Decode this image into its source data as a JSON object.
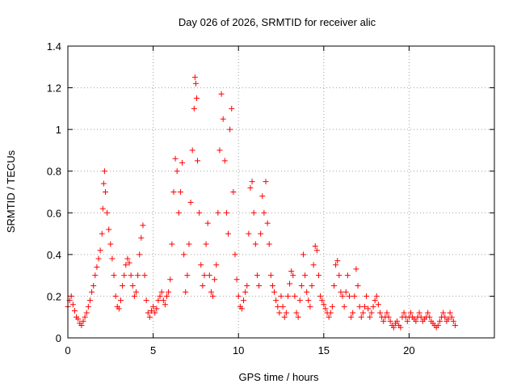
{
  "chart_data": {
    "type": "scatter",
    "title": "Day 026 of 2026, SRMTID for receiver alic",
    "xlabel": "GPS time / hours",
    "ylabel": "SRMTID / TECUs",
    "xlim": [
      0,
      25
    ],
    "ylim": [
      0,
      1.4
    ],
    "x_ticks": [
      0,
      5,
      10,
      15,
      20
    ],
    "y_ticks": [
      0,
      0.2,
      0.4,
      0.6,
      0.8,
      1,
      1.2,
      1.4
    ],
    "x_tick_labels": [
      "0",
      "5",
      "10",
      "15",
      "20"
    ],
    "y_tick_labels": [
      "0",
      "0.2",
      "0.4",
      "0.6",
      "0.8",
      "1",
      "1.2",
      "1.4"
    ],
    "grid": true,
    "marker": "plus",
    "color": "#ff0000",
    "series": [
      {
        "name": "SRMTID",
        "points": [
          [
            0.0,
            0.15
          ],
          [
            0.1,
            0.18
          ],
          [
            0.2,
            0.2
          ],
          [
            0.3,
            0.16
          ],
          [
            0.4,
            0.13
          ],
          [
            0.5,
            0.1
          ],
          [
            0.6,
            0.09
          ],
          [
            0.7,
            0.07
          ],
          [
            0.8,
            0.06
          ],
          [
            0.9,
            0.08
          ],
          [
            1.0,
            0.1
          ],
          [
            1.1,
            0.12
          ],
          [
            1.2,
            0.15
          ],
          [
            1.3,
            0.18
          ],
          [
            1.4,
            0.22
          ],
          [
            1.5,
            0.25
          ],
          [
            1.6,
            0.3
          ],
          [
            1.7,
            0.34
          ],
          [
            1.8,
            0.38
          ],
          [
            1.9,
            0.42
          ],
          [
            2.0,
            0.5
          ],
          [
            2.05,
            0.62
          ],
          [
            2.1,
            0.74
          ],
          [
            2.15,
            0.8
          ],
          [
            2.2,
            0.7
          ],
          [
            2.3,
            0.6
          ],
          [
            2.4,
            0.52
          ],
          [
            2.5,
            0.45
          ],
          [
            2.6,
            0.38
          ],
          [
            2.7,
            0.3
          ],
          [
            2.8,
            0.2
          ],
          [
            2.9,
            0.15
          ],
          [
            3.0,
            0.14
          ],
          [
            3.1,
            0.18
          ],
          [
            3.2,
            0.25
          ],
          [
            3.3,
            0.3
          ],
          [
            3.4,
            0.35
          ],
          [
            3.5,
            0.38
          ],
          [
            3.6,
            0.36
          ],
          [
            3.7,
            0.3
          ],
          [
            3.8,
            0.25
          ],
          [
            3.9,
            0.2
          ],
          [
            4.0,
            0.22
          ],
          [
            4.1,
            0.3
          ],
          [
            4.2,
            0.4
          ],
          [
            4.3,
            0.48
          ],
          [
            4.4,
            0.54
          ],
          [
            4.5,
            0.3
          ],
          [
            4.6,
            0.18
          ],
          [
            4.7,
            0.12
          ],
          [
            4.8,
            0.1
          ],
          [
            4.9,
            0.13
          ],
          [
            5.0,
            0.15
          ],
          [
            5.1,
            0.12
          ],
          [
            5.2,
            0.14
          ],
          [
            5.3,
            0.18
          ],
          [
            5.4,
            0.2
          ],
          [
            5.5,
            0.22
          ],
          [
            5.6,
            0.18
          ],
          [
            5.7,
            0.16
          ],
          [
            5.8,
            0.2
          ],
          [
            5.9,
            0.22
          ],
          [
            6.0,
            0.28
          ],
          [
            6.1,
            0.45
          ],
          [
            6.2,
            0.7
          ],
          [
            6.3,
            0.86
          ],
          [
            6.4,
            0.8
          ],
          [
            6.5,
            0.6
          ],
          [
            6.6,
            0.7
          ],
          [
            6.7,
            0.84
          ],
          [
            6.8,
            0.4
          ],
          [
            6.9,
            0.22
          ],
          [
            7.0,
            0.3
          ],
          [
            7.1,
            0.45
          ],
          [
            7.2,
            0.65
          ],
          [
            7.3,
            0.9
          ],
          [
            7.4,
            1.1
          ],
          [
            7.45,
            1.25
          ],
          [
            7.5,
            1.22
          ],
          [
            7.55,
            1.15
          ],
          [
            7.6,
            0.85
          ],
          [
            7.7,
            0.6
          ],
          [
            7.8,
            0.35
          ],
          [
            7.9,
            0.25
          ],
          [
            8.0,
            0.3
          ],
          [
            8.1,
            0.45
          ],
          [
            8.2,
            0.55
          ],
          [
            8.3,
            0.3
          ],
          [
            8.4,
            0.22
          ],
          [
            8.5,
            0.2
          ],
          [
            8.6,
            0.28
          ],
          [
            8.7,
            0.35
          ],
          [
            8.8,
            0.6
          ],
          [
            8.9,
            0.9
          ],
          [
            9.0,
            1.17
          ],
          [
            9.1,
            1.05
          ],
          [
            9.2,
            0.85
          ],
          [
            9.3,
            0.6
          ],
          [
            9.4,
            0.5
          ],
          [
            9.5,
            1.0
          ],
          [
            9.6,
            1.1
          ],
          [
            9.7,
            0.7
          ],
          [
            9.8,
            0.4
          ],
          [
            9.9,
            0.28
          ],
          [
            10.0,
            0.2
          ],
          [
            10.1,
            0.15
          ],
          [
            10.2,
            0.14
          ],
          [
            10.3,
            0.18
          ],
          [
            10.4,
            0.22
          ],
          [
            10.5,
            0.25
          ],
          [
            10.6,
            0.5
          ],
          [
            10.7,
            0.72
          ],
          [
            10.8,
            0.75
          ],
          [
            10.9,
            0.6
          ],
          [
            11.0,
            0.45
          ],
          [
            11.1,
            0.3
          ],
          [
            11.2,
            0.25
          ],
          [
            11.3,
            0.5
          ],
          [
            11.4,
            0.68
          ],
          [
            11.5,
            0.6
          ],
          [
            11.6,
            0.75
          ],
          [
            11.7,
            0.55
          ],
          [
            11.8,
            0.45
          ],
          [
            11.9,
            0.3
          ],
          [
            12.0,
            0.25
          ],
          [
            12.1,
            0.22
          ],
          [
            12.2,
            0.18
          ],
          [
            12.3,
            0.15
          ],
          [
            12.4,
            0.12
          ],
          [
            12.5,
            0.2
          ],
          [
            12.6,
            0.15
          ],
          [
            12.7,
            0.1
          ],
          [
            12.8,
            0.12
          ],
          [
            12.9,
            0.2
          ],
          [
            13.0,
            0.26
          ],
          [
            13.1,
            0.32
          ],
          [
            13.2,
            0.3
          ],
          [
            13.3,
            0.2
          ],
          [
            13.4,
            0.12
          ],
          [
            13.5,
            0.1
          ],
          [
            13.6,
            0.18
          ],
          [
            13.7,
            0.25
          ],
          [
            13.8,
            0.4
          ],
          [
            13.9,
            0.3
          ],
          [
            14.0,
            0.22
          ],
          [
            14.1,
            0.18
          ],
          [
            14.2,
            0.15
          ],
          [
            14.3,
            0.25
          ],
          [
            14.4,
            0.35
          ],
          [
            14.5,
            0.44
          ],
          [
            14.6,
            0.42
          ],
          [
            14.7,
            0.3
          ],
          [
            14.8,
            0.2
          ],
          [
            14.9,
            0.18
          ],
          [
            15.0,
            0.16
          ],
          [
            15.1,
            0.14
          ],
          [
            15.2,
            0.12
          ],
          [
            15.3,
            0.1
          ],
          [
            15.4,
            0.12
          ],
          [
            15.5,
            0.15
          ],
          [
            15.6,
            0.25
          ],
          [
            15.7,
            0.35
          ],
          [
            15.8,
            0.37
          ],
          [
            15.9,
            0.3
          ],
          [
            16.0,
            0.22
          ],
          [
            16.1,
            0.2
          ],
          [
            16.2,
            0.15
          ],
          [
            16.3,
            0.22
          ],
          [
            16.4,
            0.3
          ],
          [
            16.5,
            0.2
          ],
          [
            16.6,
            0.1
          ],
          [
            16.7,
            0.12
          ],
          [
            16.8,
            0.2
          ],
          [
            16.9,
            0.33
          ],
          [
            17.0,
            0.25
          ],
          [
            17.1,
            0.15
          ],
          [
            17.2,
            0.1
          ],
          [
            17.3,
            0.12
          ],
          [
            17.4,
            0.15
          ],
          [
            17.5,
            0.2
          ],
          [
            17.6,
            0.14
          ],
          [
            17.7,
            0.1
          ],
          [
            17.8,
            0.12
          ],
          [
            17.9,
            0.15
          ],
          [
            18.0,
            0.18
          ],
          [
            18.1,
            0.2
          ],
          [
            18.2,
            0.16
          ],
          [
            18.3,
            0.12
          ],
          [
            18.4,
            0.1
          ],
          [
            18.5,
            0.08
          ],
          [
            18.6,
            0.1
          ],
          [
            18.7,
            0.12
          ],
          [
            18.8,
            0.1
          ],
          [
            18.9,
            0.08
          ],
          [
            19.0,
            0.06
          ],
          [
            19.1,
            0.05
          ],
          [
            19.2,
            0.07
          ],
          [
            19.3,
            0.08
          ],
          [
            19.4,
            0.06
          ],
          [
            19.5,
            0.05
          ],
          [
            19.6,
            0.1
          ],
          [
            19.7,
            0.12
          ],
          [
            19.8,
            0.1
          ],
          [
            19.9,
            0.08
          ],
          [
            20.0,
            0.1
          ],
          [
            20.1,
            0.12
          ],
          [
            20.2,
            0.1
          ],
          [
            20.3,
            0.09
          ],
          [
            20.4,
            0.08
          ],
          [
            20.5,
            0.1
          ],
          [
            20.6,
            0.12
          ],
          [
            20.7,
            0.1
          ],
          [
            20.8,
            0.08
          ],
          [
            20.9,
            0.09
          ],
          [
            21.0,
            0.1
          ],
          [
            21.1,
            0.12
          ],
          [
            21.2,
            0.1
          ],
          [
            21.3,
            0.08
          ],
          [
            21.4,
            0.07
          ],
          [
            21.5,
            0.06
          ],
          [
            21.6,
            0.05
          ],
          [
            21.7,
            0.06
          ],
          [
            21.8,
            0.08
          ],
          [
            21.9,
            0.1
          ],
          [
            22.0,
            0.12
          ],
          [
            22.1,
            0.1
          ],
          [
            22.2,
            0.08
          ],
          [
            22.3,
            0.09
          ],
          [
            22.4,
            0.12
          ],
          [
            22.5,
            0.1
          ],
          [
            22.6,
            0.08
          ],
          [
            22.7,
            0.06
          ]
        ]
      }
    ]
  }
}
